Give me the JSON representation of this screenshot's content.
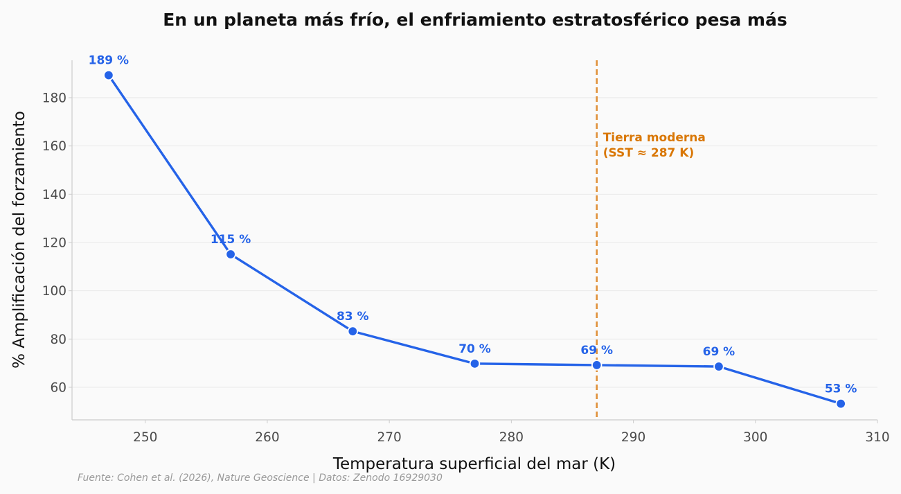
{
  "chart_data": {
    "type": "line",
    "title": "En un planeta más frío, el enfriamiento estratosférico pesa más",
    "xlabel": "Temperatura superficial del mar (K)",
    "ylabel": "% Amplificación del forzamiento",
    "xlim": [
      244,
      310
    ],
    "ylim": [
      46.5,
      195.5
    ],
    "xticks": [
      250,
      260,
      270,
      280,
      290,
      300,
      310
    ],
    "yticks": [
      60,
      80,
      100,
      120,
      140,
      160,
      180
    ],
    "grid": "horizontal",
    "series": [
      {
        "x": [
          247,
          257,
          267,
          277,
          287,
          297,
          307
        ],
        "y": [
          189.3,
          115.1,
          83.2,
          69.8,
          69.2,
          68.6,
          53.2
        ],
        "labels": [
          "189 %",
          "115 %",
          "83 %",
          "70 %",
          "69 %",
          "69 %",
          "53 %"
        ],
        "color": "#2563e8"
      }
    ],
    "reference_line": {
      "x": 287,
      "color": "#e0913a",
      "style": "dashed",
      "label_line1": "Tierra moderna",
      "label_line2": "(SST ≈ 287 K)",
      "label_color": "#d97706"
    },
    "source": "Fuente: Cohen et al. (2026), Nature Geoscience | Datos: Zenodo 16929030"
  }
}
